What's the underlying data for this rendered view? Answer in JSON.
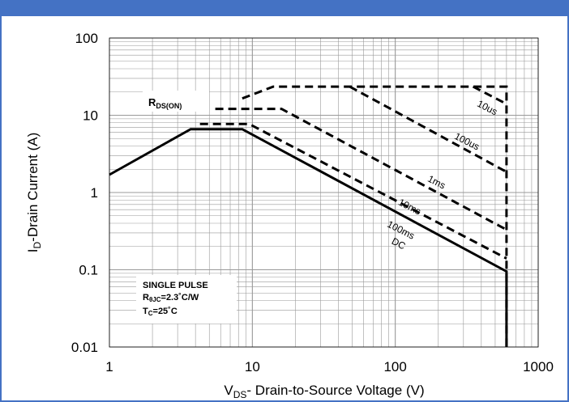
{
  "chart_data": {
    "type": "line",
    "title": "",
    "xlabel": "V",
    "xlabel_sub": "DS",
    "xlabel_rest": "- Drain-to-Source Voltage (V)",
    "ylabel": "I",
    "ylabel_sub": "D",
    "ylabel_rest": "-Drain Current (A)",
    "x_scale": "log",
    "y_scale": "log",
    "xlim": [
      1,
      1000
    ],
    "ylim": [
      0.01,
      100
    ],
    "grid": true,
    "x_ticks": [
      {
        "value": 1,
        "label": "1"
      },
      {
        "value": 10,
        "label": "10"
      },
      {
        "value": 100,
        "label": "100"
      },
      {
        "value": 1000,
        "label": "1000"
      }
    ],
    "y_ticks": [
      {
        "value": 100,
        "label": "100"
      },
      {
        "value": 10,
        "label": "10"
      },
      {
        "value": 1,
        "label": "1"
      },
      {
        "value": 0.1,
        "label": "0.1"
      },
      {
        "value": 0.01,
        "label": "0.01"
      }
    ],
    "series": [
      {
        "name": "DC",
        "style": "solid",
        "points": [
          [
            1,
            1.7
          ],
          [
            3.7,
            6.6
          ],
          [
            8.5,
            6.6
          ],
          [
            600,
            0.095
          ],
          [
            600,
            0.01
          ]
        ]
      },
      {
        "name": "100ms",
        "style": "dashed",
        "points": [
          [
            4.3,
            7.7
          ],
          [
            9.5,
            7.7
          ],
          [
            600,
            0.14
          ]
        ]
      },
      {
        "name": "10ms",
        "style": "dashed",
        "points": [
          [
            5.5,
            12.1
          ],
          [
            16,
            12.1
          ],
          [
            600,
            0.33
          ]
        ]
      },
      {
        "name": "1ms",
        "style": "dashed",
        "points": [
          [
            8.5,
            16.5
          ],
          [
            14,
            23.5
          ],
          [
            600,
            23.5
          ],
          [
            600,
            0.01
          ]
        ]
      },
      {
        "name": "100us",
        "style": "dashed",
        "points": [
          [
            48,
            23.5
          ],
          [
            600,
            1.85
          ]
        ]
      },
      {
        "name": "10us",
        "style": "dashed",
        "points": [
          [
            350,
            23.5
          ],
          [
            600,
            14
          ]
        ]
      }
    ],
    "curve_labels": [
      {
        "text": "10us",
        "x": 430,
        "y": 11.5,
        "angle": 27
      },
      {
        "text": "100us",
        "x": 310,
        "y": 4.2,
        "angle": 27
      },
      {
        "text": "1ms",
        "x": 190,
        "y": 1.25,
        "angle": 27
      },
      {
        "text": "10ms",
        "x": 123,
        "y": 0.6,
        "angle": 27
      },
      {
        "text": "100ms",
        "x": 107,
        "y": 0.3,
        "angle": 27
      },
      {
        "text": "DC",
        "x": 103,
        "y": 0.2,
        "angle": 27
      }
    ],
    "rds_label": {
      "main": "R",
      "sub": "DS(ON)"
    },
    "info_box": {
      "line1": "SINGLE PULSE",
      "line2_main": "R",
      "line2_sub": "θJC",
      "line2_rest": "=2.3˚C/W",
      "line3_main": "T",
      "line3_sub": "C",
      "line3_rest": "=25˚C"
    },
    "colors": {
      "curve": "#000000",
      "grid": "#999999",
      "frame": "#4472c4"
    }
  }
}
